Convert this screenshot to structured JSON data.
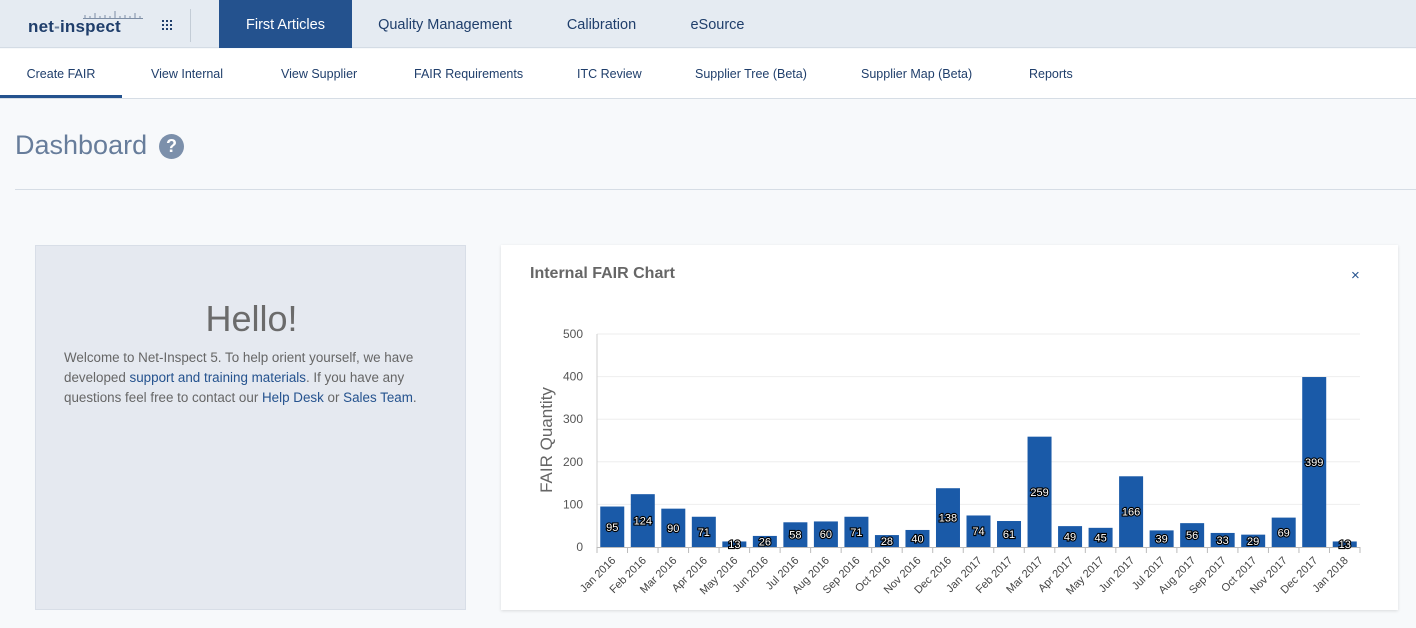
{
  "header": {
    "logo": {
      "text_left": "net",
      "text_sep": "-",
      "text_right": "inspect"
    },
    "tabs": [
      {
        "label": "First Articles",
        "active": true
      },
      {
        "label": "Quality Management",
        "active": false
      },
      {
        "label": "Calibration",
        "active": false
      },
      {
        "label": "eSource",
        "active": false
      }
    ]
  },
  "subnav": {
    "tabs": [
      {
        "label": "Create FAIR",
        "active": true
      },
      {
        "label": "View Internal"
      },
      {
        "label": "View Supplier"
      },
      {
        "label": "FAIR Requirements"
      },
      {
        "label": "ITC Review"
      },
      {
        "label": "Supplier Tree (Beta)"
      },
      {
        "label": "Supplier Map (Beta)"
      },
      {
        "label": "Reports"
      }
    ]
  },
  "page": {
    "title": "Dashboard",
    "help_symbol": "?"
  },
  "hello": {
    "title": "Hello!",
    "text_1": "Welcome to Net-Inspect 5. To help orient yourself, we have developed ",
    "link_training": "support and training materials",
    "text_2": ". If you have any questions feel free to contact our ",
    "link_helpdesk": "Help Desk",
    "text_3": " or ",
    "link_sales": "Sales Team",
    "text_4": "."
  },
  "chart_card": {
    "title": "Internal FAIR Chart",
    "close_symbol": "×"
  },
  "colors": {
    "brand_dark": "#1f3e6b",
    "active_tab": "#24528e",
    "bar": "#1a5aa8"
  },
  "chart_data": {
    "type": "bar",
    "ylabel": "FAIR Quantity",
    "xlabel": "",
    "ylim": [
      0,
      500
    ],
    "yticks": [
      0,
      100,
      200,
      300,
      400,
      500
    ],
    "grid": true,
    "categories": [
      "Jan 2016",
      "Feb 2016",
      "Mar 2016",
      "Apr 2016",
      "May 2016",
      "Jun 2016",
      "Jul 2016",
      "Aug 2016",
      "Sep 2016",
      "Oct 2016",
      "Nov 2016",
      "Dec 2016",
      "Jan 2017",
      "Feb 2017",
      "Mar 2017",
      "Apr 2017",
      "May 2017",
      "Jun 2017",
      "Jul 2017",
      "Aug 2017",
      "Sep 2017",
      "Oct 2017",
      "Nov 2017",
      "Dec 2017",
      "Jan 2018"
    ],
    "values": [
      95,
      124,
      90,
      71,
      13,
      26,
      58,
      60,
      71,
      28,
      40,
      138,
      74,
      61,
      259,
      49,
      45,
      166,
      39,
      56,
      33,
      29,
      69,
      399,
      13
    ]
  }
}
